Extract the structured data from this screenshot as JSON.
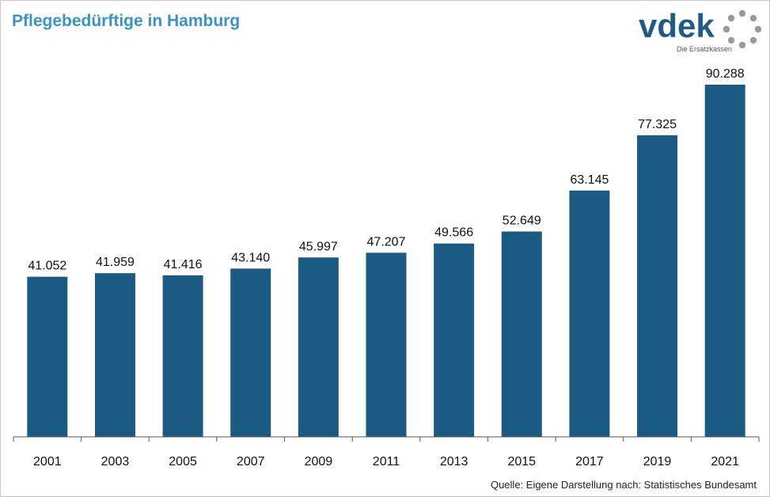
{
  "header": {
    "title": "Pflegebedürftige in Hamburg"
  },
  "logo": {
    "wordmark": "vdek",
    "tagline": "Die Ersatzkassen"
  },
  "footer": {
    "source": "Quelle: Eigene Darstellung nach: Statistisches Bundesamt"
  },
  "colors": {
    "bar": "#1b5a82",
    "title": "#3a93c4",
    "axis": "#555555"
  },
  "chart_data": {
    "type": "bar",
    "title": "Pflegebedürftige in Hamburg",
    "categories": [
      "2001",
      "2003",
      "2005",
      "2007",
      "2009",
      "2011",
      "2013",
      "2015",
      "2017",
      "2019",
      "2021"
    ],
    "values": [
      41052,
      41959,
      41416,
      43140,
      45997,
      47207,
      49566,
      52649,
      63145,
      77325,
      90288
    ],
    "value_labels": [
      "41.052",
      "41.959",
      "41.416",
      "43.140",
      "45.997",
      "47.207",
      "49.566",
      "52.649",
      "63.145",
      "77.325",
      "90.288"
    ],
    "xlabel": "",
    "ylabel": "",
    "ylim": [
      0,
      90288
    ],
    "grid": false,
    "legend": "none"
  }
}
